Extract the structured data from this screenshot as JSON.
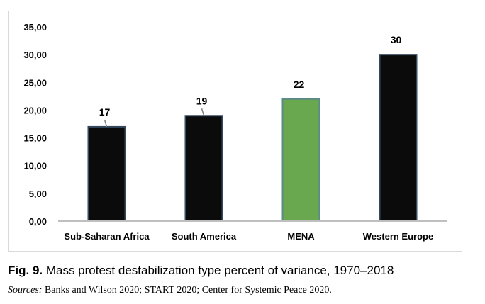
{
  "chart_data": {
    "type": "bar",
    "categories": [
      "Sub-Saharan Africa",
      "South America",
      "MENA",
      "Western Europe"
    ],
    "values": [
      17,
      19,
      22,
      30
    ],
    "data_labels": [
      "17",
      "19",
      "22",
      "30"
    ],
    "ylim": [
      0,
      35
    ],
    "yticks": [
      0,
      5,
      10,
      15,
      20,
      25,
      30,
      35
    ],
    "ytick_labels": [
      "0,00",
      "5,00",
      "10,00",
      "15,00",
      "20,00",
      "25,00",
      "30,00",
      "35,00"
    ],
    "bar_colors": [
      "#0b0b0b",
      "#0b0b0b",
      "#6aa84f",
      "#0b0b0b"
    ],
    "bar_edge_colors": [
      "#34495e",
      "#34495e",
      "#5b8a8a",
      "#34495e"
    ],
    "grid": false,
    "legend": "none"
  },
  "caption": {
    "figure_number": "Fig. 9.",
    "text": " Mass protest destabilization type percent of variance, 1970–2018"
  },
  "sources": {
    "label": "Sources:",
    "text": " Banks and Wilson 2020; START 2020; Center for Systemic Peace 2020."
  }
}
